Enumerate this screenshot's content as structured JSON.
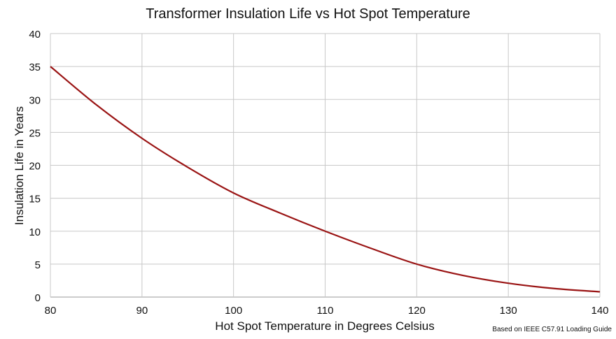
{
  "chart_data": {
    "type": "line",
    "title": "Transformer Insulation Life vs Hot Spot Temperature",
    "xlabel": "Hot Spot Temperature in Degrees Celsius",
    "ylabel": "Insulation Life in Years",
    "xlim": [
      80,
      140
    ],
    "ylim": [
      0,
      40
    ],
    "xticks": [
      80,
      90,
      100,
      110,
      120,
      130,
      140
    ],
    "yticks": [
      0,
      5,
      10,
      15,
      20,
      25,
      30,
      35,
      40
    ],
    "grid": true,
    "series": [
      {
        "color": "#9a1414",
        "x": [
          80,
          85,
          90,
          95,
          100,
          105,
          110,
          115,
          120,
          125,
          130,
          135,
          140
        ],
        "y": [
          35,
          29.2,
          24.1,
          19.7,
          15.8,
          12.8,
          10,
          7.4,
          5,
          3.3,
          2.1,
          1.3,
          0.8
        ]
      }
    ],
    "annotation": "Based on IEEE C57.91 Loading Guide"
  }
}
